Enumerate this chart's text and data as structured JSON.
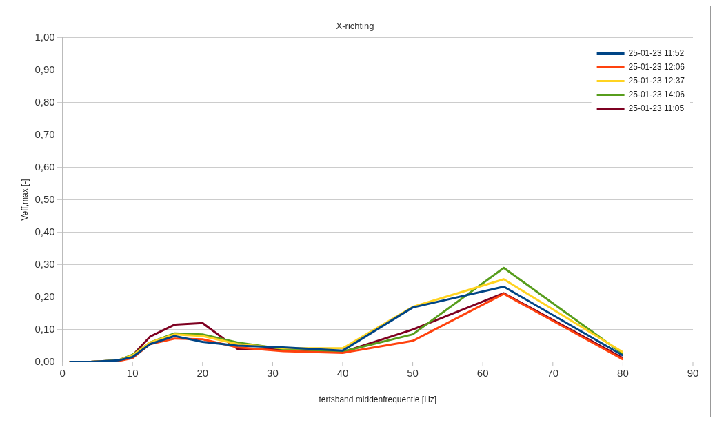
{
  "chart_data": {
    "type": "line",
    "title": "X-richting",
    "xlabel": "tertsband middenfrequentie [Hz]",
    "ylabel": "Veff,max [-]",
    "x": [
      1,
      4,
      8,
      10,
      12.5,
      16,
      20,
      25,
      31.5,
      40,
      50,
      63,
      80
    ],
    "series": [
      {
        "name": "25-01-23 11:52",
        "color": "#004586",
        "values": [
          0,
          0,
          0.005,
          0.015,
          0.055,
          0.08,
          0.062,
          0.05,
          0.045,
          0.035,
          0.168,
          0.232,
          0.02
        ]
      },
      {
        "name": "25-01-23 12:06",
        "color": "#ff420e",
        "values": [
          0,
          0,
          0.003,
          0.012,
          0.055,
          0.072,
          0.07,
          0.045,
          0.033,
          0.028,
          0.065,
          0.21,
          0.008
        ]
      },
      {
        "name": "25-01-23 12:37",
        "color": "#ffd320",
        "values": [
          0,
          0,
          0.005,
          0.02,
          0.06,
          0.085,
          0.08,
          0.055,
          0.042,
          0.042,
          0.17,
          0.255,
          0.03
        ]
      },
      {
        "name": "25-01-23 14:06",
        "color": "#579d1c",
        "values": [
          0,
          0,
          0.005,
          0.022,
          0.06,
          0.088,
          0.085,
          0.06,
          0.04,
          0.032,
          0.085,
          0.29,
          0.025
        ]
      },
      {
        "name": "25-01-23 11:05",
        "color": "#7e0021",
        "values": [
          0,
          0,
          0.005,
          0.02,
          0.078,
          0.115,
          0.12,
          0.04,
          0.04,
          0.03,
          0.1,
          0.212,
          0.012
        ]
      }
    ],
    "xlim": [
      0,
      90
    ],
    "xticks": [
      0,
      10,
      20,
      30,
      40,
      50,
      60,
      70,
      80,
      90
    ],
    "ylim": [
      0,
      1
    ],
    "yticks": [
      {
        "value": 0,
        "label": "0,00"
      },
      {
        "value": 0.1,
        "label": "0,10"
      },
      {
        "value": 0.2,
        "label": "0,20"
      },
      {
        "value": 0.3,
        "label": "0,30"
      },
      {
        "value": 0.4,
        "label": "0,40"
      },
      {
        "value": 0.5,
        "label": "0,50"
      },
      {
        "value": 0.6,
        "label": "0,60"
      },
      {
        "value": 0.7,
        "label": "0,70"
      },
      {
        "value": 0.8,
        "label": "0,80"
      },
      {
        "value": 0.9,
        "label": "0,90"
      },
      {
        "value": 1,
        "label": "1,00"
      }
    ],
    "grid": "y",
    "legend": "top right",
    "marker": "none",
    "line_style": "solid"
  }
}
